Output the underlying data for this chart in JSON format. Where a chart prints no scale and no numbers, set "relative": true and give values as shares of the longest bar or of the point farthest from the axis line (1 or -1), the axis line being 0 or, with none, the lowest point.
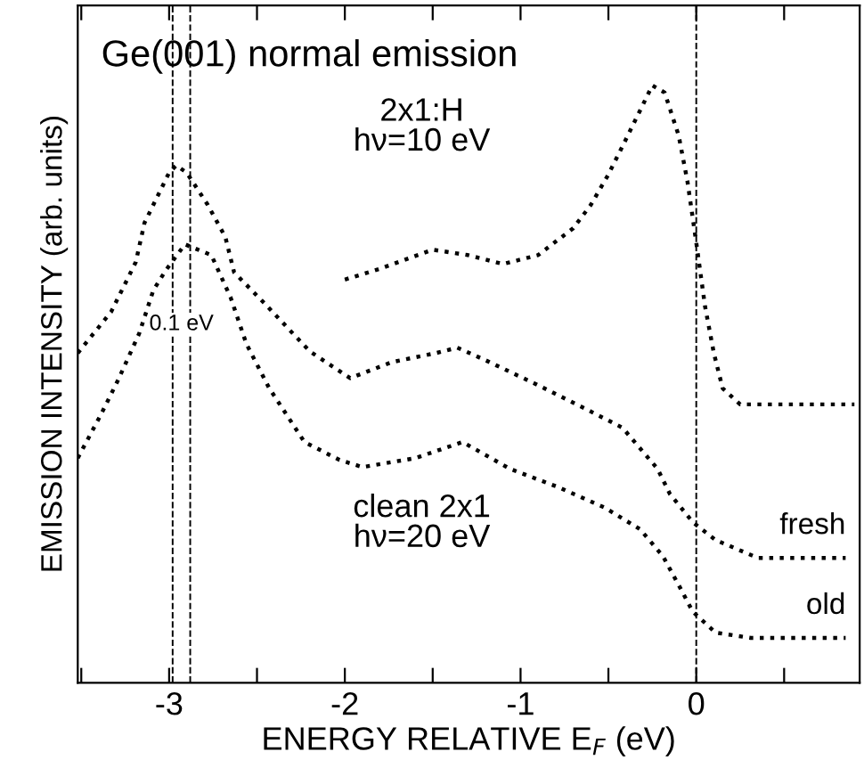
{
  "chart_data": {
    "type": "line",
    "title": "Ge(001) normal emission",
    "xlabel": "ENERGY RELATIVE E$_{F}$ (eV)",
    "ylabel": "EMISSION INTENSITY (arb. units)",
    "relative": true,
    "line_style": "dotted",
    "marker": "none",
    "tick_labels": "x",
    "grid": false,
    "xlim": [
      -3.52,
      0.93
    ],
    "xticks": [
      {
        "value": -3.5,
        "label": null
      },
      -3,
      {
        "value": -2.5,
        "label": null
      },
      -2,
      {
        "value": -1.5,
        "label": null
      },
      -1,
      {
        "value": -0.5,
        "label": null
      },
      0,
      {
        "value": 0.5,
        "label": null
      }
    ],
    "series": [
      {
        "color": "#000000",
        "x": [
          -2.0,
          -1.8,
          -1.5,
          -1.3,
          -1.1,
          -0.9,
          -0.7,
          -0.6,
          -0.5,
          -0.4,
          -0.3,
          -0.25,
          -0.18,
          -0.1,
          -0.05,
          0.0,
          0.05,
          0.1,
          0.15,
          0.25,
          0.9
        ],
        "values": [
          0.675,
          0.693,
          0.725,
          0.716,
          0.701,
          0.716,
          0.761,
          0.8,
          0.851,
          0.91,
          0.97,
          1.0,
          0.988,
          0.916,
          0.839,
          0.737,
          0.63,
          0.552,
          0.493,
          0.466,
          0.466
        ]
      },
      {
        "name": "fresh",
        "color": "#000000",
        "x": [
          -3.52,
          -3.33,
          -3.19,
          -3.14,
          -3.0,
          -2.96,
          -2.9,
          -2.78,
          -2.68,
          -2.63,
          -2.46,
          -2.2,
          -1.97,
          -1.73,
          -1.48,
          -1.36,
          -1.2,
          -0.92,
          -0.62,
          -0.42,
          -0.22,
          -0.15,
          -0.02,
          0.11,
          0.35,
          0.85
        ],
        "values": [
          0.552,
          0.621,
          0.704,
          0.77,
          0.854,
          0.866,
          0.854,
          0.8,
          0.746,
          0.687,
          0.636,
          0.555,
          0.51,
          0.537,
          0.552,
          0.561,
          0.54,
          0.501,
          0.457,
          0.427,
          0.358,
          0.316,
          0.269,
          0.239,
          0.209,
          0.209
        ]
      },
      {
        "name": "old",
        "color": "#000000",
        "x": [
          -3.52,
          -3.39,
          -3.29,
          -3.17,
          -3.09,
          -3.02,
          -2.91,
          -2.76,
          -2.65,
          -2.56,
          -2.43,
          -2.23,
          -2.03,
          -1.9,
          -1.6,
          -1.33,
          -1.06,
          -0.79,
          -0.52,
          -0.32,
          -0.19,
          -0.09,
          -0.02,
          0.11,
          0.31,
          0.85
        ],
        "values": [
          0.376,
          0.448,
          0.507,
          0.585,
          0.657,
          0.69,
          0.734,
          0.716,
          0.645,
          0.567,
          0.493,
          0.403,
          0.373,
          0.361,
          0.376,
          0.403,
          0.358,
          0.328,
          0.293,
          0.257,
          0.212,
          0.158,
          0.119,
          0.084,
          0.075,
          0.075
        ]
      }
    ],
    "ref_lines": [
      {
        "axis": "x",
        "value": 0,
        "line_style": "dashed",
        "color": "#000000"
      },
      {
        "axis": "x",
        "value": -2.98,
        "line_style": "dashed",
        "color": "#000000"
      },
      {
        "axis": "x",
        "value": -2.88,
        "line_style": "dashed",
        "color": "#000000"
      }
    ],
    "annotations": [
      "2x1:H\nhν=10 eV",
      "clean 2x1\nhν=20 eV",
      {
        "text": "0.1 eV",
        "x": -2.93,
        "y": 0.6
      }
    ]
  }
}
